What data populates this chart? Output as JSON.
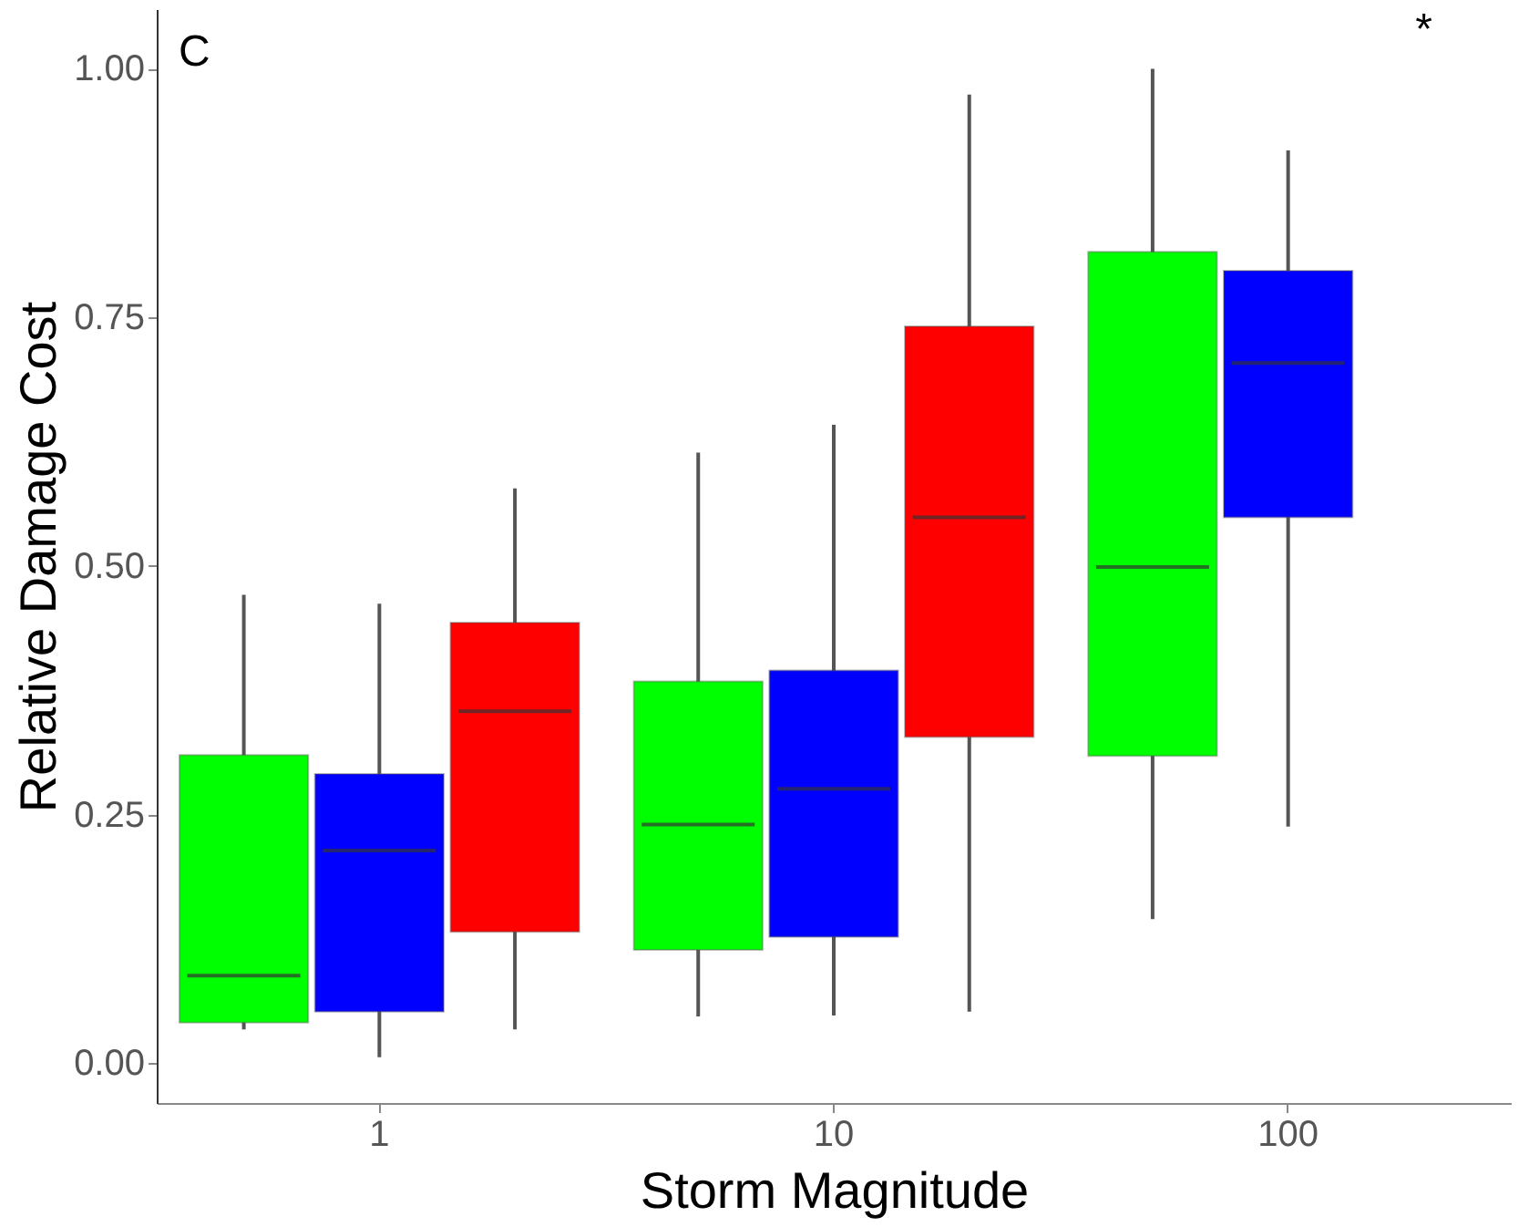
{
  "chart_data": {
    "type": "box",
    "xlabel": "Storm Magnitude",
    "ylabel": "Relative Damage Cost",
    "categories": [
      "1",
      "10",
      "100"
    ],
    "ylim": [
      -0.04,
      1.06
    ],
    "yticks": [
      {
        "value": 0,
        "label": "0.00"
      },
      {
        "value": 0.25,
        "label": "0.25"
      },
      {
        "value": 0.5,
        "label": "0.50"
      },
      {
        "value": 0.75,
        "label": "0.75"
      },
      {
        "value": 1,
        "label": "1.00"
      }
    ],
    "grid": false,
    "legend": false,
    "annotations": [
      "C",
      "*"
    ],
    "series": [
      {
        "color": "#00ff00",
        "boxes": [
          {
            "low": 0.034,
            "q1": 0.041,
            "median": 0.088,
            "q3": 0.31,
            "high": 0.471
          },
          {
            "low": 0.047,
            "q1": 0.114,
            "median": 0.24,
            "q3": 0.384,
            "high": 0.614
          },
          {
            "low": 0.145,
            "q1": 0.309,
            "median": 0.499,
            "q3": 0.816,
            "high": 1.0
          }
        ]
      },
      {
        "color": "#0000ff",
        "boxes": [
          {
            "low": 0.006,
            "q1": 0.052,
            "median": 0.214,
            "q3": 0.291,
            "high": 0.462
          },
          {
            "low": 0.048,
            "q1": 0.127,
            "median": 0.276,
            "q3": 0.395,
            "high": 0.642
          },
          {
            "low": 0.238,
            "q1": 0.549,
            "median": 0.704,
            "q3": 0.797,
            "high": 0.918
          }
        ]
      },
      {
        "color": "#ff0000",
        "boxes": [
          {
            "low": 0.034,
            "q1": 0.132,
            "median": 0.354,
            "q3": 0.443,
            "high": 0.578
          },
          {
            "low": 0.052,
            "q1": 0.328,
            "median": 0.549,
            "q3": 0.741,
            "high": 0.974
          },
          null
        ]
      }
    ]
  }
}
